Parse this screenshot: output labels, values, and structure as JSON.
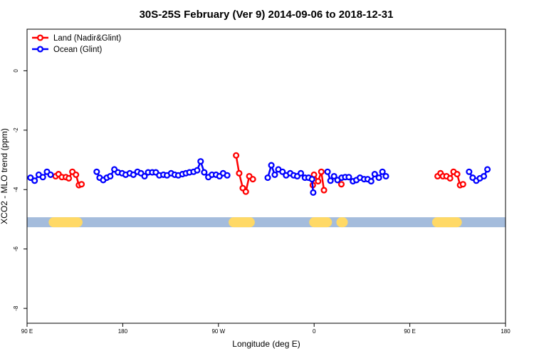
{
  "chart_data": {
    "type": "line",
    "title": "30S-25S February (Ver 9)   2014-09-06 to 2018-12-31",
    "xlabel": "Longitude (deg E)",
    "ylabel": "XCO2 - MLO trend (ppm)",
    "xlim": [
      90,
      450
    ],
    "ylim": [
      -8.5,
      1.4
    ],
    "x_ticks": [
      {
        "value": 90,
        "label": "90 E"
      },
      {
        "value": 162,
        "label": "180"
      },
      {
        "value": 234,
        "label": "90 W"
      },
      {
        "value": 306,
        "label": "0"
      },
      {
        "value": 378,
        "label": "90 E"
      },
      {
        "value": 450,
        "label": "180"
      }
    ],
    "y_ticks": [
      {
        "value": 0,
        "label": "0"
      },
      {
        "value": -2,
        "label": "-2"
      },
      {
        "value": -4,
        "label": "-4"
      },
      {
        "value": -6,
        "label": "-6"
      },
      {
        "value": -8,
        "label": "-8"
      }
    ],
    "legend": {
      "position": "top-left",
      "entries": [
        "Land (Nadir&Glint)",
        "Ocean (Glint)"
      ]
    },
    "grid": false,
    "series": [
      {
        "name": "Land (Nadir&Glint)",
        "color": "#ff0000",
        "segments": [
          [
            [
              111.5,
              -3.55
            ],
            [
              113.7,
              -3.48
            ],
            [
              116.2,
              -3.58
            ],
            [
              119.2,
              -3.58
            ],
            [
              121.4,
              -3.62
            ],
            [
              124.1,
              -3.4
            ],
            [
              126.8,
              -3.5
            ],
            [
              129.0,
              -3.85
            ],
            [
              131.0,
              -3.82
            ]
          ],
          [
            [
              247.3,
              -2.85
            ],
            [
              249.6,
              -3.45
            ],
            [
              252.3,
              -3.95
            ],
            [
              254.6,
              -4.07
            ],
            [
              257.2,
              -3.55
            ],
            [
              259.9,
              -3.65
            ]
          ],
          [
            [
              305.0,
              -3.85
            ],
            [
              305.9,
              -3.5
            ],
            [
              309.0,
              -3.72
            ],
            [
              311.4,
              -3.4
            ],
            [
              313.4,
              -4.02
            ]
          ],
          [
            [
              326.5,
              -3.82
            ]
          ],
          [
            [
              398.9,
              -3.55
            ],
            [
              401.1,
              -3.45
            ],
            [
              402.9,
              -3.55
            ],
            [
              405.6,
              -3.55
            ],
            [
              408.3,
              -3.62
            ],
            [
              410.9,
              -3.4
            ],
            [
              413.6,
              -3.48
            ],
            [
              415.8,
              -3.85
            ],
            [
              418.0,
              -3.82
            ]
          ]
        ]
      },
      {
        "name": "Ocean (Glint)",
        "color": "#0000ff",
        "segments": [
          [
            [
              92.6,
              -3.6
            ],
            [
              95.7,
              -3.7
            ],
            [
              98.8,
              -3.5
            ],
            [
              101.9,
              -3.58
            ],
            [
              105.0,
              -3.4
            ],
            [
              107.7,
              -3.5
            ]
          ],
          [
            [
              142.4,
              -3.4
            ],
            [
              144.6,
              -3.6
            ],
            [
              147.3,
              -3.68
            ],
            [
              150.0,
              -3.6
            ],
            [
              152.6,
              -3.55
            ],
            [
              155.7,
              -3.32
            ],
            [
              158.4,
              -3.42
            ],
            [
              161.5,
              -3.45
            ],
            [
              164.2,
              -3.5
            ],
            [
              167.3,
              -3.45
            ],
            [
              170.0,
              -3.5
            ],
            [
              173.1,
              -3.4
            ],
            [
              175.7,
              -3.45
            ],
            [
              178.4,
              -3.55
            ],
            [
              181.1,
              -3.42
            ],
            [
              184.2,
              -3.42
            ],
            [
              186.9,
              -3.42
            ],
            [
              189.5,
              -3.52
            ],
            [
              192.6,
              -3.5
            ],
            [
              195.3,
              -3.52
            ],
            [
              198.4,
              -3.45
            ],
            [
              201.1,
              -3.5
            ],
            [
              203.8,
              -3.52
            ],
            [
              206.9,
              -3.48
            ],
            [
              209.5,
              -3.45
            ],
            [
              212.2,
              -3.42
            ],
            [
              215.3,
              -3.4
            ],
            [
              218.0,
              -3.35
            ],
            [
              220.6,
              -3.05
            ],
            [
              223.3,
              -3.42
            ],
            [
              226.4,
              -3.58
            ],
            [
              229.1,
              -3.5
            ],
            [
              232.2,
              -3.5
            ],
            [
              234.8,
              -3.55
            ],
            [
              237.5,
              -3.45
            ],
            [
              240.6,
              -3.52
            ]
          ],
          [
            [
              271.1,
              -3.6
            ],
            [
              273.8,
              -3.18
            ],
            [
              276.4,
              -3.5
            ],
            [
              279.1,
              -3.32
            ],
            [
              282.2,
              -3.4
            ],
            [
              284.9,
              -3.52
            ],
            [
              288.0,
              -3.45
            ],
            [
              290.6,
              -3.52
            ],
            [
              293.3,
              -3.55
            ],
            [
              296.0,
              -3.45
            ],
            [
              299.1,
              -3.6
            ],
            [
              301.8,
              -3.6
            ],
            [
              304.4,
              -3.65
            ],
            [
              305.3,
              -4.1
            ]
          ],
          [
            [
              316.1,
              -3.4
            ],
            [
              318.3,
              -3.7
            ],
            [
              321.0,
              -3.55
            ],
            [
              323.6,
              -3.68
            ],
            [
              326.7,
              -3.6
            ],
            [
              329.4,
              -3.58
            ],
            [
              332.1,
              -3.58
            ],
            [
              335.2,
              -3.72
            ],
            [
              337.8,
              -3.68
            ],
            [
              340.5,
              -3.6
            ],
            [
              343.6,
              -3.65
            ],
            [
              346.3,
              -3.65
            ],
            [
              348.9,
              -3.72
            ],
            [
              351.6,
              -3.48
            ],
            [
              354.7,
              -3.6
            ],
            [
              357.4,
              -3.4
            ],
            [
              360.0,
              -3.55
            ]
          ],
          [
            [
              422.6,
              -3.4
            ],
            [
              425.3,
              -3.6
            ],
            [
              428.0,
              -3.7
            ],
            [
              430.7,
              -3.62
            ],
            [
              433.7,
              -3.55
            ],
            [
              436.4,
              -3.32
            ]
          ]
        ]
      }
    ],
    "surface_band": {
      "y": -5.1,
      "base_color": "#a4bcdc",
      "land_color": "#ffd966",
      "land_ranges": [
        [
          110.0,
          128.0
        ],
        [
          245.4,
          257.6
        ],
        [
          306.0,
          315.7
        ],
        [
          326.5,
          327.6
        ],
        [
          398.5,
          413.4
        ]
      ]
    }
  }
}
